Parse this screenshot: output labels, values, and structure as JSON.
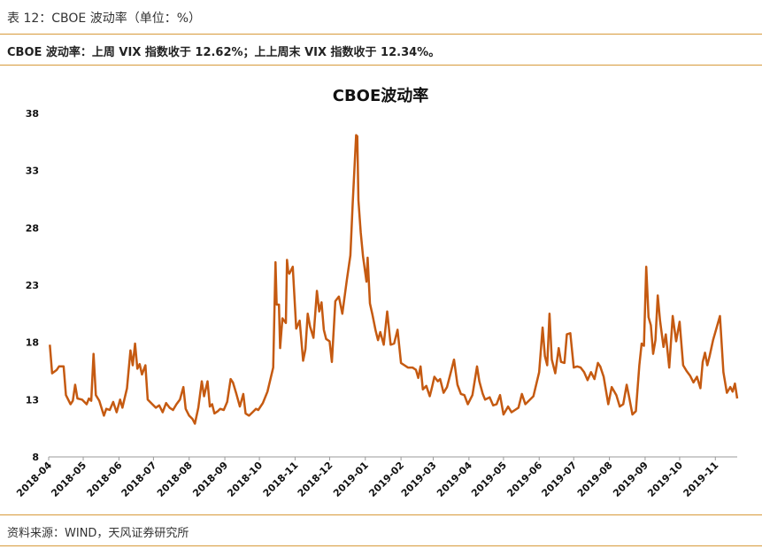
{
  "caption": "表 12：CBOE 波动率（单位：%）",
  "headline": "CBOE 波动率：上周 VIX 指数收于 12.62%；上上周末 VIX 指数收于 12.34%。",
  "source": "资料来源：WIND，天风证券研究所",
  "colors": {
    "line": "#c55a11",
    "rule": "#d79a3a"
  },
  "chart_data": {
    "type": "line",
    "title": "CBOE波动率",
    "xlabel": "",
    "ylabel": "",
    "ylim": [
      8,
      38
    ],
    "yticks": [
      8,
      13,
      18,
      23,
      28,
      33,
      38
    ],
    "xlim": [
      "2018-04-01",
      "2019-11-20"
    ],
    "xticks": [
      "2018-04",
      "2018-05",
      "2018-06",
      "2018-07",
      "2018-08",
      "2018-09",
      "2018-10",
      "2018-11",
      "2018-12",
      "2019-01",
      "2019-02",
      "2019-03",
      "2019-04",
      "2019-05",
      "2019-06",
      "2019-07",
      "2019-08",
      "2019-09",
      "2019-10",
      "2019-11"
    ],
    "grid": false,
    "legend": "none",
    "series": [
      {
        "name": "",
        "points": [
          [
            "2018-04-02",
            17.8
          ],
          [
            "2018-04-04",
            15.3
          ],
          [
            "2018-04-08",
            15.6
          ],
          [
            "2018-04-10",
            15.9
          ],
          [
            "2018-04-14",
            15.9
          ],
          [
            "2018-04-16",
            13.4
          ],
          [
            "2018-04-20",
            12.6
          ],
          [
            "2018-04-22",
            12.9
          ],
          [
            "2018-04-24",
            14.3
          ],
          [
            "2018-04-26",
            13.1
          ],
          [
            "2018-04-30",
            13.0
          ],
          [
            "2018-05-04",
            12.6
          ],
          [
            "2018-05-06",
            13.1
          ],
          [
            "2018-05-08",
            12.9
          ],
          [
            "2018-05-10",
            17.0
          ],
          [
            "2018-05-12",
            13.4
          ],
          [
            "2018-05-15",
            12.9
          ],
          [
            "2018-05-19",
            11.6
          ],
          [
            "2018-05-21",
            12.2
          ],
          [
            "2018-05-24",
            12.1
          ],
          [
            "2018-05-27",
            12.8
          ],
          [
            "2018-05-30",
            11.9
          ],
          [
            "2018-06-02",
            13.0
          ],
          [
            "2018-06-04",
            12.3
          ],
          [
            "2018-06-08",
            14.0
          ],
          [
            "2018-06-11",
            17.3
          ],
          [
            "2018-06-13",
            16.0
          ],
          [
            "2018-06-15",
            17.9
          ],
          [
            "2018-06-17",
            15.7
          ],
          [
            "2018-06-19",
            16.1
          ],
          [
            "2018-06-21",
            15.2
          ],
          [
            "2018-06-24",
            16.0
          ],
          [
            "2018-06-26",
            13.0
          ],
          [
            "2018-06-30",
            12.6
          ],
          [
            "2018-07-03",
            12.3
          ],
          [
            "2018-07-06",
            12.5
          ],
          [
            "2018-07-09",
            11.9
          ],
          [
            "2018-07-12",
            12.7
          ],
          [
            "2018-07-15",
            12.3
          ],
          [
            "2018-07-18",
            12.1
          ],
          [
            "2018-07-21",
            12.6
          ],
          [
            "2018-07-24",
            13.0
          ],
          [
            "2018-07-27",
            14.1
          ],
          [
            "2018-07-29",
            12.2
          ],
          [
            "2018-08-01",
            11.6
          ],
          [
            "2018-08-04",
            11.3
          ],
          [
            "2018-08-06",
            10.9
          ],
          [
            "2018-08-09",
            12.3
          ],
          [
            "2018-08-12",
            14.6
          ],
          [
            "2018-08-14",
            13.3
          ],
          [
            "2018-08-17",
            14.6
          ],
          [
            "2018-08-19",
            12.4
          ],
          [
            "2018-08-21",
            12.6
          ],
          [
            "2018-08-23",
            11.8
          ],
          [
            "2018-08-26",
            12.0
          ],
          [
            "2018-08-28",
            12.2
          ],
          [
            "2018-08-31",
            12.1
          ],
          [
            "2018-09-03",
            12.8
          ],
          [
            "2018-09-06",
            14.8
          ],
          [
            "2018-09-08",
            14.5
          ],
          [
            "2018-09-11",
            13.5
          ],
          [
            "2018-09-14",
            12.4
          ],
          [
            "2018-09-17",
            13.5
          ],
          [
            "2018-09-19",
            11.8
          ],
          [
            "2018-09-22",
            11.6
          ],
          [
            "2018-09-25",
            11.9
          ],
          [
            "2018-09-28",
            12.2
          ],
          [
            "2018-09-30",
            12.1
          ],
          [
            "2018-10-04",
            12.7
          ],
          [
            "2018-10-08",
            13.7
          ],
          [
            "2018-10-13",
            15.8
          ],
          [
            "2018-10-15",
            25.0
          ],
          [
            "2018-10-16",
            21.3
          ],
          [
            "2018-10-18",
            21.3
          ],
          [
            "2018-10-19",
            17.5
          ],
          [
            "2018-10-21",
            20.1
          ],
          [
            "2018-10-24",
            19.7
          ],
          [
            "2018-10-25",
            25.2
          ],
          [
            "2018-10-26",
            24.2
          ],
          [
            "2018-10-27",
            24.0
          ],
          [
            "2018-10-30",
            24.6
          ],
          [
            "2018-11-02",
            19.2
          ],
          [
            "2018-11-05",
            19.9
          ],
          [
            "2018-11-08",
            16.4
          ],
          [
            "2018-11-10",
            17.4
          ],
          [
            "2018-11-12",
            20.5
          ],
          [
            "2018-11-14",
            19.4
          ],
          [
            "2018-11-17",
            18.4
          ],
          [
            "2018-11-20",
            22.5
          ],
          [
            "2018-11-22",
            20.7
          ],
          [
            "2018-11-24",
            21.5
          ],
          [
            "2018-11-26",
            19.1
          ],
          [
            "2018-11-28",
            18.3
          ],
          [
            "2018-12-01",
            18.1
          ],
          [
            "2018-12-03",
            16.3
          ],
          [
            "2018-12-06",
            21.6
          ],
          [
            "2018-12-09",
            22.0
          ],
          [
            "2018-12-12",
            20.5
          ],
          [
            "2018-12-16",
            23.5
          ],
          [
            "2018-12-19",
            25.6
          ],
          [
            "2018-12-21",
            30.1
          ],
          [
            "2018-12-24",
            36.1
          ],
          [
            "2018-12-25",
            36.0
          ],
          [
            "2018-12-26",
            30.4
          ],
          [
            "2018-12-28",
            27.6
          ],
          [
            "2018-12-30",
            25.5
          ],
          [
            "2019-01-02",
            23.3
          ],
          [
            "2019-01-03",
            25.4
          ],
          [
            "2019-01-05",
            21.4
          ],
          [
            "2019-01-07",
            20.5
          ],
          [
            "2019-01-10",
            19.0
          ],
          [
            "2019-01-12",
            18.2
          ],
          [
            "2019-01-14",
            18.9
          ],
          [
            "2019-01-17",
            17.8
          ],
          [
            "2019-01-20",
            20.7
          ],
          [
            "2019-01-23",
            17.8
          ],
          [
            "2019-01-26",
            17.9
          ],
          [
            "2019-01-29",
            19.1
          ],
          [
            "2019-02-01",
            16.2
          ],
          [
            "2019-02-04",
            16.0
          ],
          [
            "2019-02-07",
            15.8
          ],
          [
            "2019-02-11",
            15.8
          ],
          [
            "2019-02-14",
            15.6
          ],
          [
            "2019-02-16",
            14.9
          ],
          [
            "2019-02-18",
            15.9
          ],
          [
            "2019-02-20",
            13.9
          ],
          [
            "2019-02-23",
            14.2
          ],
          [
            "2019-02-26",
            13.3
          ],
          [
            "2019-02-28",
            14.1
          ],
          [
            "2019-03-02",
            15.0
          ],
          [
            "2019-03-05",
            14.6
          ],
          [
            "2019-03-07",
            14.8
          ],
          [
            "2019-03-10",
            13.6
          ],
          [
            "2019-03-13",
            14.1
          ],
          [
            "2019-03-16",
            15.3
          ],
          [
            "2019-03-19",
            16.5
          ],
          [
            "2019-03-22",
            14.3
          ],
          [
            "2019-03-25",
            13.5
          ],
          [
            "2019-03-28",
            13.4
          ],
          [
            "2019-03-31",
            12.6
          ],
          [
            "2019-04-04",
            13.4
          ],
          [
            "2019-04-08",
            15.9
          ],
          [
            "2019-04-10",
            14.6
          ],
          [
            "2019-04-13",
            13.5
          ],
          [
            "2019-04-15",
            13.0
          ],
          [
            "2019-04-19",
            13.2
          ],
          [
            "2019-04-22",
            12.5
          ],
          [
            "2019-04-25",
            12.6
          ],
          [
            "2019-04-28",
            13.4
          ],
          [
            "2019-05-01",
            11.7
          ],
          [
            "2019-05-05",
            12.4
          ],
          [
            "2019-05-08",
            11.9
          ],
          [
            "2019-05-11",
            12.1
          ],
          [
            "2019-05-14",
            12.3
          ],
          [
            "2019-05-17",
            13.5
          ],
          [
            "2019-05-20",
            12.6
          ],
          [
            "2019-05-23",
            12.9
          ],
          [
            "2019-05-27",
            13.3
          ],
          [
            "2019-06-01",
            15.4
          ],
          [
            "2019-06-04",
            19.3
          ],
          [
            "2019-06-06",
            16.8
          ],
          [
            "2019-06-08",
            16.0
          ],
          [
            "2019-06-10",
            20.5
          ],
          [
            "2019-06-12",
            16.5
          ],
          [
            "2019-06-15",
            15.3
          ],
          [
            "2019-06-18",
            17.5
          ],
          [
            "2019-06-20",
            16.3
          ],
          [
            "2019-06-23",
            16.2
          ],
          [
            "2019-06-25",
            18.7
          ],
          [
            "2019-06-28",
            18.8
          ],
          [
            "2019-07-01",
            15.8
          ],
          [
            "2019-07-04",
            15.9
          ],
          [
            "2019-07-07",
            15.8
          ],
          [
            "2019-07-10",
            15.4
          ],
          [
            "2019-07-13",
            14.7
          ],
          [
            "2019-07-16",
            15.4
          ],
          [
            "2019-07-19",
            14.8
          ],
          [
            "2019-07-22",
            16.2
          ],
          [
            "2019-07-24",
            15.9
          ],
          [
            "2019-07-27",
            15.0
          ],
          [
            "2019-07-31",
            12.6
          ],
          [
            "2019-08-03",
            14.1
          ],
          [
            "2019-08-07",
            13.4
          ],
          [
            "2019-08-10",
            12.4
          ],
          [
            "2019-08-13",
            12.6
          ],
          [
            "2019-08-16",
            14.3
          ],
          [
            "2019-08-18",
            13.3
          ],
          [
            "2019-08-21",
            11.7
          ],
          [
            "2019-08-24",
            12.0
          ],
          [
            "2019-08-27",
            16.0
          ],
          [
            "2019-08-29",
            17.9
          ],
          [
            "2019-08-31",
            17.7
          ],
          [
            "2019-09-02",
            24.6
          ],
          [
            "2019-09-04",
            20.2
          ],
          [
            "2019-09-06",
            19.5
          ],
          [
            "2019-09-08",
            17.0
          ],
          [
            "2019-09-10",
            18.2
          ],
          [
            "2019-09-12",
            22.1
          ],
          [
            "2019-09-14",
            19.9
          ],
          [
            "2019-09-17",
            17.6
          ],
          [
            "2019-09-19",
            18.7
          ],
          [
            "2019-09-22",
            15.8
          ],
          [
            "2019-09-25",
            20.3
          ],
          [
            "2019-09-28",
            18.1
          ],
          [
            "2019-10-01",
            19.8
          ],
          [
            "2019-10-04",
            16.0
          ],
          [
            "2019-10-07",
            15.5
          ],
          [
            "2019-10-10",
            15.1
          ],
          [
            "2019-10-13",
            14.5
          ],
          [
            "2019-10-16",
            15.0
          ],
          [
            "2019-10-19",
            14.0
          ],
          [
            "2019-10-21",
            16.3
          ],
          [
            "2019-10-23",
            17.1
          ],
          [
            "2019-10-25",
            16.0
          ],
          [
            "2019-10-27",
            16.8
          ],
          [
            "2019-10-30",
            18.2
          ],
          [
            "2019-11-05",
            20.3
          ],
          [
            "2019-11-08",
            15.4
          ],
          [
            "2019-11-11",
            13.6
          ],
          [
            "2019-11-14",
            14.1
          ],
          [
            "2019-11-16",
            13.7
          ],
          [
            "2019-11-18",
            14.4
          ],
          [
            "2019-11-20",
            13.1
          ]
        ]
      }
    ]
  }
}
